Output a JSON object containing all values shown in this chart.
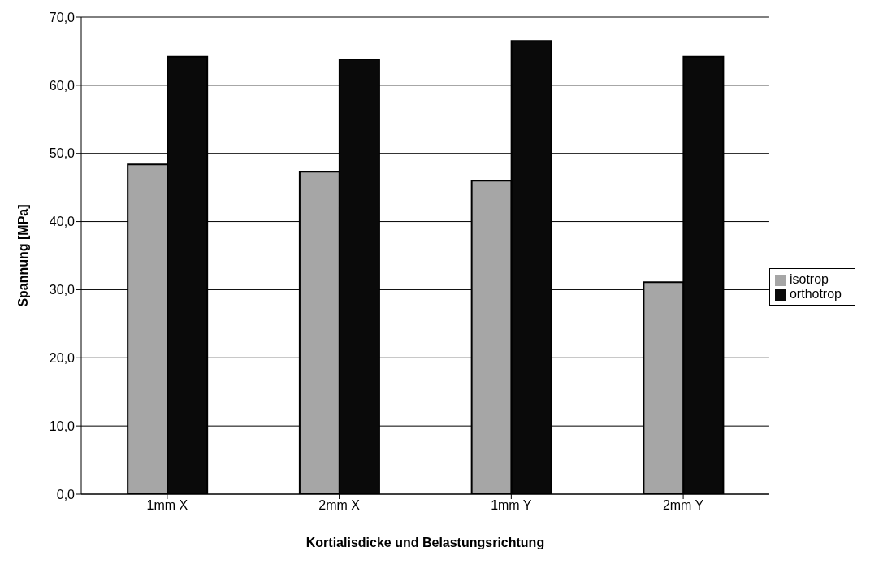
{
  "chart_data": {
    "type": "bar",
    "xlabel": "Kortialisdicke und Belastungsrichtung",
    "ylabel": "Spannung [MPa]",
    "categories": [
      "1mm  X",
      "2mm  X",
      "1mm  Y",
      "2mm  Y"
    ],
    "series": [
      {
        "name": "isotrop",
        "color": "#a6a6a6",
        "values": [
          48.4,
          47.3,
          46.0,
          31.1
        ]
      },
      {
        "name": "orthotrop",
        "color": "#0a0a0a",
        "values": [
          64.2,
          63.8,
          66.5,
          64.2
        ]
      }
    ],
    "ylim": [
      0,
      70
    ],
    "yticks": [
      {
        "value": 0,
        "label": "0,0"
      },
      {
        "value": 10,
        "label": "10,0"
      },
      {
        "value": 20,
        "label": "20,0"
      },
      {
        "value": 30,
        "label": "30,0"
      },
      {
        "value": 40,
        "label": "40,0"
      },
      {
        "value": 50,
        "label": "50,0"
      },
      {
        "value": 60,
        "label": "60,0"
      },
      {
        "value": 70,
        "label": "70,0"
      }
    ],
    "grid": "y",
    "legend": "right"
  }
}
